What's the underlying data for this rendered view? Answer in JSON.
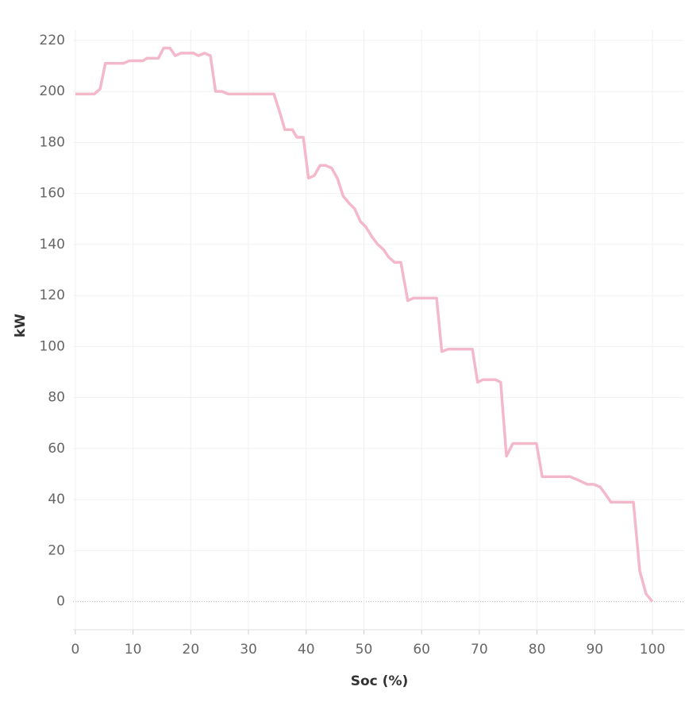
{
  "chart_data": {
    "type": "line",
    "x_label": "Soc (%)",
    "y_label": "kW",
    "x": [
      0,
      3.3,
      4.3,
      5.2,
      8.3,
      9.4,
      11.7,
      12.4,
      14.4,
      15.3,
      16.4,
      17.3,
      18.3,
      20.5,
      21.3,
      22.4,
      23.4,
      24.3,
      25.4,
      26.5,
      34.4,
      35.4,
      36.3,
      37.6,
      38.4,
      39.5,
      40.4,
      41.4,
      42.4,
      43.3,
      44.4,
      45.4,
      46.4,
      47.5,
      48.4,
      49.4,
      50.3,
      51.4,
      52.4,
      53.4,
      54.3,
      55.3,
      56.4,
      57.6,
      58.6,
      62.6,
      63.5,
      64.6,
      68.8,
      69.7,
      70.6,
      72.8,
      73.7,
      74.7,
      75.8,
      79.9,
      80.9,
      85.7,
      86.8,
      88.7,
      89.8,
      90.9,
      91.9,
      92.8,
      96.7,
      97.8,
      98.9,
      100
    ],
    "series": [
      {
        "name": "kW",
        "color": "#f4b8cb",
        "values": [
          199,
          199,
          201,
          211,
          211,
          212,
          212,
          213,
          213,
          217,
          217,
          214,
          215,
          215,
          214,
          215,
          214,
          200,
          200,
          199,
          199,
          192,
          185,
          185,
          182,
          182,
          166,
          167,
          171,
          171,
          170,
          166,
          159,
          156,
          154,
          149,
          147,
          143,
          140,
          138,
          135,
          133,
          133,
          118,
          119,
          119,
          98,
          99,
          99,
          86,
          87,
          87,
          86,
          57,
          62,
          62,
          49,
          49,
          48,
          46,
          46,
          45,
          42,
          39,
          39,
          12,
          3,
          0
        ]
      }
    ],
    "xlim": [
      -0.4,
      105.5
    ],
    "ylim": [
      -11,
      224
    ],
    "xticks": [
      0,
      10,
      20,
      30,
      40,
      50,
      60,
      70,
      80,
      90,
      100
    ],
    "yticks": [
      0,
      20,
      40,
      60,
      80,
      100,
      120,
      140,
      160,
      180,
      200,
      220
    ],
    "grid": true
  }
}
